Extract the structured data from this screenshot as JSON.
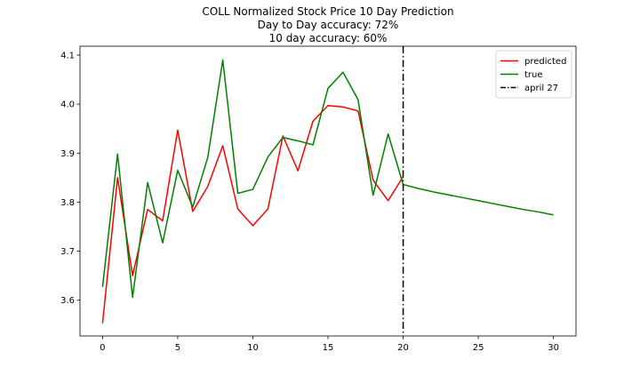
{
  "chart_data": {
    "type": "line",
    "title": "COLL Normalized Stock Price 10 Day Prediction",
    "subtitle_lines": [
      "Day to Day accuracy: 72%",
      "10 day accuracy: 60%"
    ],
    "xlabel": "",
    "ylabel": "",
    "xlim": [
      -1.5,
      31.5
    ],
    "ylim": [
      3.527,
      4.118
    ],
    "x_ticks": [
      0,
      5,
      10,
      15,
      20,
      25,
      30
    ],
    "y_ticks": [
      3.6,
      3.7,
      3.8,
      3.9,
      4.0,
      4.1
    ],
    "x_tick_labels": [
      "0",
      "5",
      "10",
      "15",
      "20",
      "25",
      "30"
    ],
    "y_tick_labels": [
      "3.6",
      "3.7",
      "3.8",
      "3.9",
      "4.0",
      "4.1"
    ],
    "grid": false,
    "legend_position": "upper right",
    "series": [
      {
        "name": "predicted",
        "color": "#ff0000",
        "x": [
          0,
          1,
          2,
          3,
          4,
          5,
          6,
          7,
          8,
          9,
          10,
          11,
          12,
          13,
          14,
          15,
          16,
          17,
          18,
          19,
          20
        ],
        "values": [
          3.553,
          3.85,
          3.65,
          3.785,
          3.762,
          3.947,
          3.781,
          3.832,
          3.915,
          3.786,
          3.752,
          3.786,
          3.935,
          3.864,
          3.965,
          3.997,
          3.994,
          3.986,
          3.845,
          3.803,
          3.852
        ]
      },
      {
        "name": "true",
        "color": "#008000",
        "x": [
          0,
          1,
          2,
          3,
          4,
          5,
          6,
          7,
          8,
          9,
          10,
          11,
          12,
          13,
          14,
          15,
          16,
          17,
          18,
          19,
          20,
          21,
          22,
          23,
          24,
          25,
          26,
          27,
          28,
          29,
          30
        ],
        "values": [
          3.627,
          3.898,
          3.606,
          3.84,
          3.717,
          3.865,
          3.79,
          3.891,
          4.09,
          3.818,
          3.826,
          3.892,
          3.932,
          3.925,
          3.917,
          4.032,
          4.065,
          4.009,
          3.814,
          3.939,
          3.836,
          3.828,
          3.821,
          3.815,
          3.809,
          3.803,
          3.797,
          3.791,
          3.785,
          3.78,
          3.774
        ]
      }
    ],
    "vlines": [
      {
        "name": "april 27",
        "x": 20,
        "color": "#000000",
        "style": "dashdot"
      }
    ]
  }
}
